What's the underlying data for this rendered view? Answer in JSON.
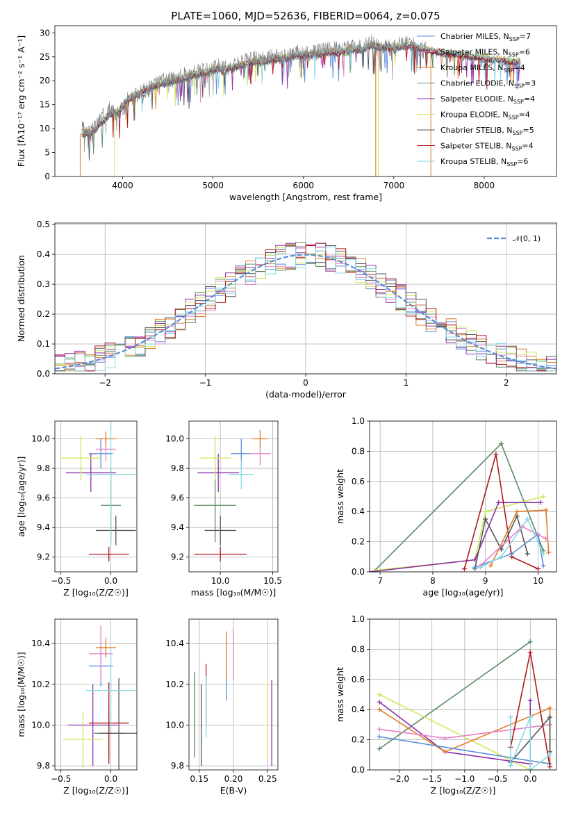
{
  "figure": {
    "title": "PLATE=1060, MJD=52636, FIBERID=0064, z=0.075"
  },
  "colors": {
    "Chabrier MILES": "#5b8bd6",
    "Salpeter MILES": "#e87fc9",
    "Kroupa MILES": "#e07a25",
    "Chabrier ELODIE": "#5a8a63",
    "Salpeter ELODIE": "#8e2fa8",
    "Kroupa ELODIE": "#cde85a",
    "Chabrier STELIB": "#555555",
    "Salpeter STELIB": "#b0161d",
    "Kroupa STELIB": "#86d8e3",
    "data": "#808080",
    "normal": "#5b8bd6"
  },
  "chart_data": [
    {
      "id": "spectrum",
      "type": "line",
      "title": "PLATE=1060, MJD=52636, FIBERID=0064, z=0.075",
      "xlabel": "wavelength [Angstrom, rest frame]",
      "ylabel": "Flux [fλ10⁻¹⁷ erg cm⁻² s⁻¹ A⁻¹]",
      "xlim": [
        3250,
        8800
      ],
      "ylim": [
        0,
        31.5
      ],
      "xticks": [
        4000,
        5000,
        6000,
        7000,
        8000
      ],
      "yticks": [
        0,
        5,
        10,
        15,
        20,
        25,
        30
      ],
      "grid": false,
      "legend_position": "lower-right",
      "legend": [
        {
          "label": "Chabrier MILES, N",
          "sub": "SSP",
          "eq": "=7",
          "color_key": "Chabrier MILES"
        },
        {
          "label": "Salpeter MILES, N",
          "sub": "SSP",
          "eq": "=6",
          "color_key": "Salpeter MILES"
        },
        {
          "label": "Kroupa MILES, N",
          "sub": "SSP",
          "eq": "=4",
          "color_key": "Kroupa MILES"
        },
        {
          "label": "Chabrier ELODIE, N",
          "sub": "SSP",
          "eq": "=3",
          "color_key": "Chabrier ELODIE"
        },
        {
          "label": "Salpeter ELODIE, N",
          "sub": "SSP",
          "eq": "=4",
          "color_key": "Salpeter ELODIE"
        },
        {
          "label": "Kroupa ELODIE, N",
          "sub": "SSP",
          "eq": "=4",
          "color_key": "Kroupa ELODIE"
        },
        {
          "label": "Chabrier STELIB, N",
          "sub": "SSP",
          "eq": "=5",
          "color_key": "Chabrier STELIB"
        },
        {
          "label": "Salpeter STELIB, N",
          "sub": "SSP",
          "eq": "=4",
          "color_key": "Salpeter STELIB"
        },
        {
          "label": "Kroupa STELIB, N",
          "sub": "SSP",
          "eq": "=6",
          "color_key": "Kroupa STELIB"
        }
      ],
      "data_spectrum": {
        "wavelength": [
          3550,
          3650,
          3750,
          3850,
          3950,
          4050,
          4150,
          4250,
          4350,
          4450,
          4550,
          4650,
          4750,
          4850,
          4950,
          5050,
          5150,
          5250,
          5350,
          5450,
          5550,
          5650,
          5750,
          5850,
          5950,
          6050,
          6150,
          6250,
          6350,
          6450,
          6550,
          6650,
          6750,
          6850,
          6950,
          7050,
          7150,
          7250,
          7350
        ],
        "flux": [
          10,
          9,
          12,
          14,
          13,
          16,
          17,
          18,
          19,
          20,
          20.5,
          21,
          21.5,
          22,
          22,
          23,
          22.5,
          23.5,
          24,
          24.5,
          24.5,
          25,
          25,
          25.5,
          26,
          25.5,
          26,
          26.5,
          26.5,
          26.5,
          27,
          27,
          28,
          27.5,
          27,
          27.5,
          28,
          27,
          26.5
        ]
      },
      "model_spectrum": {
        "wavelength": [
          3550,
          3650,
          3750,
          3850,
          3950,
          4050,
          4150,
          4250,
          4350,
          4450,
          4550,
          4650,
          4750,
          4850,
          4950,
          5050,
          5150,
          5250,
          5350,
          5450,
          5550,
          5650,
          5750,
          5850,
          5950,
          6050,
          6150,
          6250,
          6350,
          6450,
          6550,
          6650,
          6750,
          6850,
          6950,
          7050,
          7150,
          7250,
          7350,
          7500,
          7700,
          7900,
          8100,
          8300,
          8400
        ],
        "flux": [
          9,
          9,
          11,
          13,
          13.5,
          16,
          17,
          18,
          19,
          19.5,
          20,
          20.5,
          21,
          21.5,
          22,
          22.5,
          22.5,
          23,
          23.5,
          24,
          24,
          24.5,
          24.5,
          25,
          25.5,
          25.5,
          25.5,
          26,
          26,
          26,
          26.5,
          26.5,
          27.5,
          27,
          27,
          27,
          27.5,
          27,
          26.5,
          26,
          25.5,
          25,
          24.5,
          24,
          24
        ]
      }
    },
    {
      "id": "residuals",
      "type": "histogram",
      "xlabel": "(data-model)/error",
      "ylabel": "Normed distribution",
      "xlim": [
        -2.5,
        2.5
      ],
      "ylim": [
        0,
        0.505
      ],
      "xticks": [
        -2,
        -1,
        0,
        1,
        2
      ],
      "yticks": [
        0.0,
        0.1,
        0.2,
        0.3,
        0.4,
        0.5
      ],
      "grid": true,
      "legend_position": "top-right",
      "legend": [
        {
          "label": "𝒩(0, 1)",
          "color_key": "normal",
          "style": "dashed"
        }
      ],
      "bin_edges_start": -2.5,
      "bin_width": 0.1
    },
    {
      "id": "age-vs-Z",
      "type": "errorbar",
      "xlabel": "Z [log₁₀(Z/Z☉)]",
      "ylabel": "age  [log₁₀(age/yr)]",
      "xlim": [
        -0.56,
        0.26
      ],
      "ylim": [
        9.1,
        10.12
      ],
      "xticks": [
        -0.5,
        0.0
      ],
      "yticks": [
        9.2,
        9.4,
        9.6,
        9.8,
        10.0
      ],
      "grid": true,
      "points": [
        {
          "key": "Chabrier MILES",
          "x": -0.1,
          "xerr": 0.12,
          "y": 9.9,
          "yerr": 0.1
        },
        {
          "key": "Salpeter MILES",
          "x": -0.05,
          "xerr": 0.1,
          "y": 9.93,
          "yerr": 0.08
        },
        {
          "key": "Kroupa MILES",
          "x": -0.05,
          "xerr": 0.1,
          "y": 10.0,
          "yerr": 0.05
        },
        {
          "key": "Chabrier ELODIE",
          "x": 0.0,
          "xerr": 0.1,
          "y": 9.55,
          "yerr": 0.25
        },
        {
          "key": "Salpeter ELODIE",
          "x": -0.2,
          "xerr": 0.25,
          "y": 9.77,
          "yerr": 0.13
        },
        {
          "key": "Kroupa ELODIE",
          "x": -0.3,
          "xerr": 0.2,
          "y": 9.87,
          "yerr": 0.15
        },
        {
          "key": "Chabrier STELIB",
          "x": 0.05,
          "xerr": 0.2,
          "y": 9.38,
          "yerr": 0.1
        },
        {
          "key": "Salpeter STELIB",
          "x": -0.02,
          "xerr": 0.2,
          "y": 9.22,
          "yerr": 0.05
        },
        {
          "key": "Kroupa STELIB",
          "x": 0.0,
          "xerr": 0.25,
          "y": 9.76,
          "yerr": 0.5
        }
      ]
    },
    {
      "id": "age-vs-mass",
      "type": "errorbar",
      "xlabel": "mass [log₁₀(M/M☉)]",
      "ylabel": "",
      "xlim": [
        9.7,
        10.55
      ],
      "ylim": [
        9.1,
        10.12
      ],
      "xticks": [
        10.0,
        10.5
      ],
      "yticks": [
        9.2,
        9.4,
        9.6,
        9.8,
        10.0
      ],
      "grid": true,
      "points": [
        {
          "key": "Chabrier MILES",
          "x": 10.2,
          "xerr": 0.1,
          "y": 9.9,
          "yerr": 0.1
        },
        {
          "key": "Salpeter MILES",
          "x": 10.38,
          "xerr": 0.1,
          "y": 9.9,
          "yerr": 0.08
        },
        {
          "key": "Kroupa MILES",
          "x": 10.38,
          "xerr": 0.08,
          "y": 10.0,
          "yerr": 0.06
        },
        {
          "key": "Chabrier ELODIE",
          "x": 9.95,
          "xerr": 0.2,
          "y": 9.55,
          "yerr": 0.25
        },
        {
          "key": "Salpeter ELODIE",
          "x": 9.98,
          "xerr": 0.2,
          "y": 9.77,
          "yerr": 0.13
        },
        {
          "key": "Kroupa ELODIE",
          "x": 9.95,
          "xerr": 0.15,
          "y": 9.87,
          "yerr": 0.15
        },
        {
          "key": "Chabrier STELIB",
          "x": 10.0,
          "xerr": 0.15,
          "y": 9.38,
          "yerr": 0.1
        },
        {
          "key": "Salpeter STELIB",
          "x": 10.0,
          "xerr": 0.25,
          "y": 9.22,
          "yerr": 0.05
        },
        {
          "key": "Kroupa STELIB",
          "x": 10.2,
          "xerr": 0.12,
          "y": 9.76,
          "yerr": 0.1
        }
      ]
    },
    {
      "id": "massweight-vs-age",
      "type": "line",
      "xlabel": "age  [log₁₀(age/yr)]",
      "ylabel": "mass weight",
      "xlim": [
        6.8,
        10.35
      ],
      "ylim": [
        0,
        1.0
      ],
      "xticks": [
        7,
        8,
        9,
        10
      ],
      "yticks": [
        0.0,
        0.2,
        0.4,
        0.6,
        0.8,
        1.0
      ],
      "grid": true,
      "series": [
        {
          "key": "Chabrier ELODIE",
          "x": [
            6.9,
            9.3,
            10.1
          ],
          "y": [
            0.01,
            0.85,
            0.14
          ]
        },
        {
          "key": "Kroupa ELODIE",
          "x": [
            6.9,
            8.8,
            9.0,
            10.1
          ],
          "y": [
            0.01,
            0.08,
            0.4,
            0.5
          ]
        },
        {
          "key": "Salpeter ELODIE",
          "x": [
            6.8,
            8.8,
            9.25,
            10.05
          ],
          "y": [
            0.0,
            0.08,
            0.46,
            0.46
          ]
        },
        {
          "key": "Salpeter STELIB",
          "x": [
            8.6,
            9.2,
            9.5,
            10.0
          ],
          "y": [
            0.02,
            0.78,
            0.1,
            0.02
          ]
        },
        {
          "key": "Chabrier STELIB",
          "x": [
            8.8,
            9.0,
            9.3,
            9.6,
            9.8
          ],
          "y": [
            0.02,
            0.35,
            0.15,
            0.37,
            0.12
          ]
        },
        {
          "key": "Kroupa MILES",
          "x": [
            9.1,
            9.6,
            10.15,
            10.2
          ],
          "y": [
            0.04,
            0.4,
            0.41,
            0.13
          ]
        },
        {
          "key": "Chabrier MILES",
          "x": [
            8.8,
            9.5,
            10.0,
            10.1
          ],
          "y": [
            0.03,
            0.12,
            0.25,
            0.04
          ]
        },
        {
          "key": "Salpeter MILES",
          "x": [
            8.9,
            9.7,
            10.15
          ],
          "y": [
            0.04,
            0.3,
            0.22
          ]
        },
        {
          "key": "Kroupa STELIB",
          "x": [
            8.9,
            9.3,
            9.8,
            10.1
          ],
          "y": [
            0.03,
            0.1,
            0.35,
            0.12
          ]
        }
      ]
    },
    {
      "id": "mass-vs-Z",
      "type": "errorbar",
      "xlabel": "Z [log₁₀(Z/Z☉)]",
      "ylabel": "mass [log₁₀(M/M☉)]",
      "xlim": [
        -0.56,
        0.26
      ],
      "ylim": [
        9.78,
        10.52
      ],
      "xticks": [
        -0.5,
        0.0
      ],
      "yticks": [
        9.8,
        10.0,
        10.2,
        10.4
      ],
      "grid": true,
      "points": [
        {
          "key": "Chabrier MILES",
          "x": -0.1,
          "xerr": 0.12,
          "y": 10.29,
          "yerr": 0.1
        },
        {
          "key": "Salpeter MILES",
          "x": -0.1,
          "xerr": 0.12,
          "y": 10.35,
          "yerr": 0.14
        },
        {
          "key": "Kroupa MILES",
          "x": -0.05,
          "xerr": 0.1,
          "y": 10.38,
          "yerr": 0.05
        },
        {
          "key": "Chabrier ELODIE",
          "x": -0.02,
          "xerr": 0.15,
          "y": 9.96,
          "yerr": 0.11
        },
        {
          "key": "Salpeter ELODIE",
          "x": -0.18,
          "xerr": 0.25,
          "y": 10.0,
          "yerr": 0.2
        },
        {
          "key": "Kroupa ELODIE",
          "x": -0.28,
          "xerr": 0.2,
          "y": 9.93,
          "yerr": 0.14
        },
        {
          "key": "Chabrier STELIB",
          "x": 0.08,
          "xerr": 0.2,
          "y": 9.96,
          "yerr": 0.27
        },
        {
          "key": "Salpeter STELIB",
          "x": -0.02,
          "xerr": 0.2,
          "y": 10.01,
          "yerr": 0.2
        },
        {
          "key": "Kroupa STELIB",
          "x": 0.0,
          "xerr": 0.25,
          "y": 10.17,
          "yerr": 0.2
        }
      ]
    },
    {
      "id": "mass-vs-ebv",
      "type": "errorbar",
      "xlabel": "E(B-V)",
      "ylabel": "",
      "xlim": [
        0.135,
        0.265
      ],
      "ylim": [
        9.78,
        10.52
      ],
      "xticks": [
        0.15,
        0.2,
        0.25
      ],
      "yticks": [
        9.8,
        10.0,
        10.2,
        10.4
      ],
      "grid": true,
      "points": [
        {
          "key": "Chabrier MILES",
          "x": 0.19,
          "xerr": 0,
          "y": 10.2,
          "yerr": 0.08
        },
        {
          "key": "Salpeter MILES",
          "x": 0.2,
          "xerr": 0,
          "y": 10.35,
          "yerr": 0.13
        },
        {
          "key": "Kroupa MILES",
          "x": 0.19,
          "xerr": 0,
          "y": 10.34,
          "yerr": 0.12
        },
        {
          "key": "Chabrier ELODIE",
          "x": 0.143,
          "xerr": 0,
          "y": 10.05,
          "yerr": 0.21
        },
        {
          "key": "Salpeter ELODIE",
          "x": 0.256,
          "xerr": 0,
          "y": 10.01,
          "yerr": 0.21
        },
        {
          "key": "Kroupa ELODIE",
          "x": 0.25,
          "xerr": 0,
          "y": 10.03,
          "yerr": 0.2
        },
        {
          "key": "Chabrier STELIB",
          "x": 0.153,
          "xerr": 0,
          "y": 10.0,
          "yerr": 0.2
        },
        {
          "key": "Salpeter STELIB",
          "x": 0.16,
          "xerr": 0,
          "y": 10.15,
          "yerr": 0.15
        },
        {
          "key": "Kroupa STELIB",
          "x": 0.16,
          "xerr": 0,
          "y": 10.09,
          "yerr": 0.15
        }
      ]
    },
    {
      "id": "massweight-vs-Z",
      "type": "line",
      "xlabel": "Z [log₁₀(Z/Z☉)]",
      "ylabel": "mass weight",
      "xlim": [
        -2.45,
        0.4
      ],
      "ylim": [
        0,
        1.0
      ],
      "xticks": [
        -2.0,
        -1.5,
        -1.0,
        -0.5,
        0.0
      ],
      "yticks": [
        0.0,
        0.2,
        0.4,
        0.6,
        0.8,
        1.0
      ],
      "grid": true,
      "series": [
        {
          "key": "Chabrier ELODIE",
          "x": [
            -2.3,
            0.0
          ],
          "y": [
            0.14,
            0.85
          ]
        },
        {
          "key": "Kroupa ELODIE",
          "x": [
            -2.3,
            0.0
          ],
          "y": [
            0.5,
            0.0
          ]
        },
        {
          "key": "Salpeter ELODIE",
          "x": [
            -2.3,
            -1.3,
            0.0,
            0.0
          ],
          "y": [
            0.45,
            0.12,
            0.04,
            0.46
          ]
        },
        {
          "key": "Kroupa MILES",
          "x": [
            -2.3,
            -1.3,
            0.3,
            0.3
          ],
          "y": [
            0.4,
            0.12,
            0.41,
            0.04
          ]
        },
        {
          "key": "Chabrier MILES",
          "x": [
            -2.3,
            0.3
          ],
          "y": [
            0.22,
            0.04
          ]
        },
        {
          "key": "Salpeter MILES",
          "x": [
            -2.3,
            -1.3,
            0.3
          ],
          "y": [
            0.27,
            0.21,
            0.3
          ]
        },
        {
          "key": "Salpeter STELIB",
          "x": [
            -0.3,
            0.0,
            0.3
          ],
          "y": [
            0.15,
            0.78,
            0.02
          ]
        },
        {
          "key": "Chabrier STELIB",
          "x": [
            -0.3,
            0.3,
            0.3
          ],
          "y": [
            0.05,
            0.35,
            0.12
          ]
        },
        {
          "key": "Kroupa STELIB",
          "x": [
            -0.3,
            -0.3,
            0.0,
            0.0,
            0.3
          ],
          "y": [
            0.35,
            0.03,
            0.35,
            0.0,
            0.1
          ]
        }
      ]
    }
  ]
}
